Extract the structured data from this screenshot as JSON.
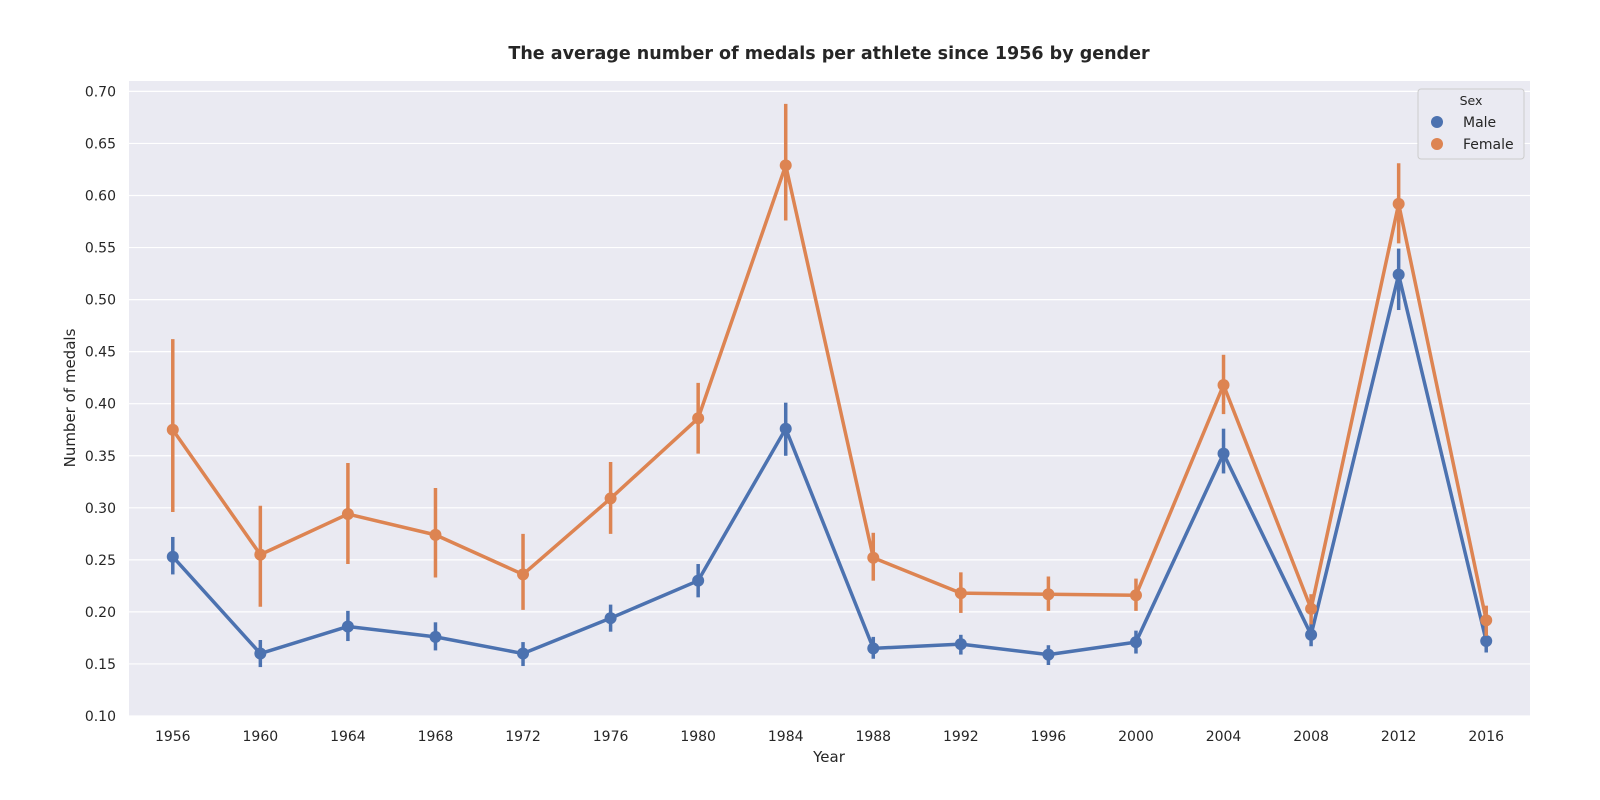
{
  "chart_data": {
    "type": "line",
    "title": "The average number of medals per athlete since 1956 by gender",
    "xlabel": "Year",
    "ylabel": "Number of medals",
    "categories": [
      "1956",
      "1960",
      "1964",
      "1968",
      "1972",
      "1976",
      "1980",
      "1984",
      "1988",
      "1992",
      "1996",
      "2000",
      "2004",
      "2008",
      "2012",
      "2016"
    ],
    "ylim": [
      0.1,
      0.71
    ],
    "yticks": [
      "0.10",
      "0.15",
      "0.20",
      "0.25",
      "0.30",
      "0.35",
      "0.40",
      "0.45",
      "0.50",
      "0.55",
      "0.60",
      "0.65",
      "0.70"
    ],
    "grid": true,
    "legend": {
      "title": "Sex",
      "placement": "top-right"
    },
    "series": [
      {
        "name": "Male",
        "color": "#4C72B0",
        "values": [
          0.253,
          0.16,
          0.186,
          0.176,
          0.16,
          0.194,
          0.23,
          0.376,
          0.165,
          0.169,
          0.159,
          0.171,
          0.352,
          0.178,
          0.524,
          0.172
        ],
        "ci_low": [
          0.236,
          0.147,
          0.172,
          0.163,
          0.148,
          0.181,
          0.214,
          0.35,
          0.155,
          0.159,
          0.149,
          0.16,
          0.333,
          0.167,
          0.49,
          0.161
        ],
        "ci_high": [
          0.272,
          0.173,
          0.201,
          0.19,
          0.171,
          0.207,
          0.246,
          0.401,
          0.176,
          0.178,
          0.168,
          0.182,
          0.376,
          0.189,
          0.549,
          0.183
        ]
      },
      {
        "name": "Female",
        "color": "#DD8452",
        "values": [
          0.375,
          0.255,
          0.294,
          0.274,
          0.236,
          0.309,
          0.386,
          0.629,
          0.252,
          0.218,
          0.217,
          0.216,
          0.418,
          0.203,
          0.592,
          0.192
        ],
        "ci_low": [
          0.296,
          0.205,
          0.246,
          0.233,
          0.202,
          0.275,
          0.352,
          0.576,
          0.23,
          0.199,
          0.201,
          0.201,
          0.39,
          0.188,
          0.554,
          0.177
        ],
        "ci_high": [
          0.462,
          0.302,
          0.343,
          0.319,
          0.275,
          0.344,
          0.42,
          0.688,
          0.276,
          0.238,
          0.234,
          0.232,
          0.447,
          0.217,
          0.631,
          0.206
        ]
      }
    ]
  }
}
